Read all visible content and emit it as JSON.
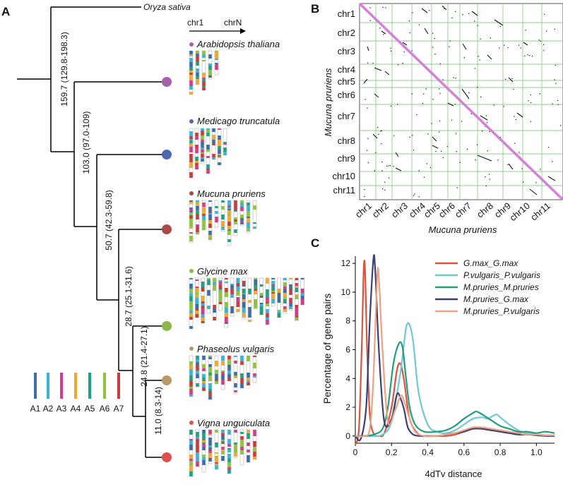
{
  "panels": {
    "a": "A",
    "b": "B",
    "c": "C"
  },
  "tree": {
    "outgroup": "Oryza sativa",
    "branch_labels": [
      "159.7 (129.8-198.3)",
      "103.0 (97.0-109)",
      "50.7 (42.3-59.8)",
      "28.7 (25.1-31.6)",
      "24.8 (21.4-27.1)",
      "11.0 (8.3-14)"
    ],
    "species": [
      {
        "name": "Arabidopsis thaliana",
        "color": "#a860a8"
      },
      {
        "name": "Medicago truncatula",
        "color": "#5066b0"
      },
      {
        "name": "Mucuna pruriens",
        "color": "#a84a4a"
      },
      {
        "name": "Glycine max",
        "color": "#8cb84a"
      },
      {
        "name": "Phaseolus vulgaris",
        "color": "#b89a66"
      },
      {
        "name": "Vigna unguiculata",
        "color": "#e05050"
      }
    ],
    "chr_axis": {
      "start": "chr1",
      "end": "chrN"
    }
  },
  "legend_A": {
    "items": [
      {
        "label": "A1",
        "color": "#3a6ea5"
      },
      {
        "label": "A2",
        "color": "#3ab4d6"
      },
      {
        "label": "A3",
        "color": "#d63a8c"
      },
      {
        "label": "A4",
        "color": "#f0a830"
      },
      {
        "label": "A5",
        "color": "#1fa080"
      },
      {
        "label": "A6",
        "color": "#8cc43c"
      },
      {
        "label": "A7",
        "color": "#c83c3c"
      }
    ]
  },
  "dotplot": {
    "chromosomes": [
      "chr1",
      "chr2",
      "chr3",
      "chr4",
      "chr5",
      "chr6",
      "chr7",
      "chr8",
      "chr9",
      "chr10",
      "chr11"
    ],
    "xlabel": "Mucuna pruriens",
    "ylabel": "Mucuna pruriens",
    "diagonal_color": "#d77fd8",
    "grid_color": "#8fce8f"
  },
  "chart_data": {
    "type": "line",
    "xlabel": "4dTv distance",
    "ylabel": "Percentage of gene pairs",
    "xlim": [
      0,
      1.1
    ],
    "ylim": [
      -0.5,
      12.5
    ],
    "xticks": [
      0,
      0.2,
      0.4,
      0.6,
      0.8,
      1.0
    ],
    "xtick_labels": [
      "0",
      "0.2",
      "0.4",
      "0.6",
      "0.8",
      "1.0"
    ],
    "yticks": [
      0,
      2,
      4,
      6,
      8,
      10,
      12
    ],
    "ytick_labels": [
      "0",
      "2",
      "4",
      "6",
      "8",
      "10",
      "12"
    ],
    "legend_position": "top-right",
    "series": [
      {
        "name": "G.max_G.max",
        "color": "#d9533d",
        "x": [
          0,
          0.02,
          0.035,
          0.05,
          0.065,
          0.08,
          0.1,
          0.13,
          0.16,
          0.2,
          0.23,
          0.25,
          0.27,
          0.3,
          0.35,
          0.4,
          0.45,
          0.5,
          0.55,
          0.6,
          0.65,
          0.7,
          0.75,
          0.8,
          0.85,
          0.9,
          0.95,
          1.0,
          1.05,
          1.1
        ],
        "y": [
          -0.6,
          0.5,
          6,
          12.2,
          6,
          1.5,
          0.2,
          0,
          0.2,
          2,
          4.6,
          5,
          3.8,
          1.2,
          0.1,
          0,
          0,
          0,
          0.1,
          0.3,
          0.5,
          0.5,
          0.4,
          0.3,
          0.2,
          0.2,
          0.1,
          0.1,
          0.05,
          0.05
        ]
      },
      {
        "name": "P.vulgaris_P.vulgaris",
        "color": "#6ec8d8",
        "x": [
          0,
          0.05,
          0.1,
          0.15,
          0.2,
          0.25,
          0.28,
          0.3,
          0.32,
          0.35,
          0.4,
          0.45,
          0.5,
          0.55,
          0.6,
          0.65,
          0.7,
          0.73,
          0.76,
          0.78,
          0.8,
          0.85,
          0.9,
          0.95,
          1.0,
          1.05,
          1.1
        ],
        "y": [
          0,
          0,
          0,
          0.1,
          1,
          4.5,
          7.5,
          7.7,
          6.5,
          3,
          0.8,
          0.3,
          0.2,
          0.4,
          0.8,
          1.2,
          1.3,
          1.2,
          1.4,
          1.5,
          1.3,
          0.8,
          0.4,
          0.2,
          0.1,
          0.05,
          0
        ]
      },
      {
        "name": "M.pruries_M.pruries",
        "color": "#1f9e7e",
        "x": [
          0,
          0.05,
          0.1,
          0.15,
          0.18,
          0.21,
          0.24,
          0.26,
          0.28,
          0.3,
          0.33,
          0.38,
          0.45,
          0.5,
          0.55,
          0.6,
          0.65,
          0.67,
          0.7,
          0.75,
          0.8,
          0.85,
          0.9,
          0.95,
          1.0,
          1.05,
          1.1
        ],
        "y": [
          0,
          0,
          0.1,
          0.5,
          2,
          5,
          6.4,
          6.2,
          4,
          2,
          0.8,
          0.3,
          0.3,
          0.4,
          0.7,
          1.2,
          1.6,
          1.7,
          1.5,
          1.1,
          0.7,
          0.5,
          0.3,
          0.3,
          0.2,
          0.3,
          0.2
        ]
      },
      {
        "name": "M.pruries_G.max",
        "color": "#3b3f78",
        "x": [
          0,
          0.03,
          0.06,
          0.08,
          0.1,
          0.11,
          0.13,
          0.16,
          0.2,
          0.23,
          0.25,
          0.27,
          0.29,
          0.32,
          0.36,
          0.4,
          0.45,
          0.5,
          0.55,
          0.6,
          0.65,
          0.7,
          0.75,
          0.8,
          0.85,
          0.9,
          0.95,
          1.0,
          1.05,
          1.1
        ],
        "y": [
          0,
          -0.2,
          2,
          8,
          12.3,
          11.5,
          6,
          1,
          1.2,
          2.9,
          2.6,
          1.8,
          0.6,
          0.1,
          0,
          0,
          0,
          0.1,
          0.2,
          0.3,
          0.5,
          0.5,
          0.4,
          0.3,
          0.2,
          0.1,
          0.1,
          0.05,
          0,
          0
        ]
      },
      {
        "name": "M.pruries_P.vulgaris",
        "color": "#eda183",
        "x": [
          0,
          0.05,
          0.08,
          0.1,
          0.12,
          0.13,
          0.15,
          0.18,
          0.22,
          0.25,
          0.27,
          0.3,
          0.33,
          0.38,
          0.45,
          0.5,
          0.55,
          0.6,
          0.65,
          0.7,
          0.75,
          0.8,
          0.85,
          0.9,
          0.95,
          1.0,
          1.05,
          1.1
        ],
        "y": [
          0,
          0,
          0.5,
          4,
          10.9,
          11,
          6,
          1,
          1.8,
          2.8,
          2.4,
          1.2,
          0.3,
          0,
          0,
          0.1,
          0.2,
          0.4,
          0.6,
          0.6,
          0.5,
          0.4,
          0.3,
          0.2,
          0.1,
          0.1,
          0.05,
          0.05
        ]
      }
    ]
  }
}
